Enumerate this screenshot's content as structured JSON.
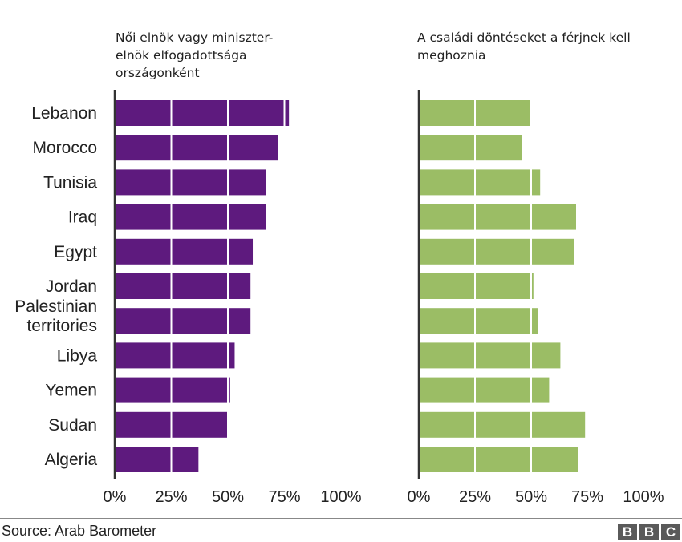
{
  "chart_data": [
    {
      "type": "bar",
      "orientation": "horizontal",
      "title": "Női elnök vagy miniszter-elnök elfogadottsága országonként",
      "title_lines": [
        "Női elnök vagy miniszter-",
        "elnök elfogadottsága",
        "országonként"
      ],
      "categories": [
        "Lebanon",
        "Morocco",
        "Tunisia",
        "Iraq",
        "Egypt",
        "Jordan",
        "Palestinian territories",
        "Libya",
        "Yemen",
        "Sudan",
        "Algeria"
      ],
      "category_lines": [
        [
          "Lebanon"
        ],
        [
          "Morocco"
        ],
        [
          "Tunisia"
        ],
        [
          "Iraq"
        ],
        [
          "Egypt"
        ],
        [
          "Jordan"
        ],
        [
          "Palestinian",
          "territories"
        ],
        [
          "Libya"
        ],
        [
          "Yemen"
        ],
        [
          "Sudan"
        ],
        [
          "Algeria"
        ]
      ],
      "values": [
        77,
        72,
        67,
        67,
        61,
        60,
        60,
        53,
        51,
        50,
        37
      ],
      "xlim": [
        0,
        100
      ],
      "ticks": [
        0,
        25,
        50,
        75,
        100
      ],
      "tick_labels": [
        "0%",
        "25%",
        "50%",
        "75%",
        "100%"
      ],
      "grid": true,
      "color": "#5e1a7e"
    },
    {
      "type": "bar",
      "orientation": "horizontal",
      "title": "A családi döntéseket a férjnek kell meghoznia",
      "title_lines": [
        "A családi döntéseket a férjnek kell",
        "meghoznia"
      ],
      "categories": [
        "Lebanon",
        "Morocco",
        "Tunisia",
        "Iraq",
        "Egypt",
        "Jordan",
        "Palestinian territories",
        "Libya",
        "Yemen",
        "Sudan",
        "Algeria"
      ],
      "values": [
        50,
        46,
        54,
        70,
        69,
        51,
        53,
        63,
        58,
        74,
        71
      ],
      "xlim": [
        0,
        100
      ],
      "ticks": [
        0,
        25,
        50,
        75,
        100
      ],
      "tick_labels": [
        "0%",
        "25%",
        "50%",
        "75%",
        "100%"
      ],
      "grid": true,
      "color": "#9bbd65"
    }
  ],
  "footer": {
    "source": "Source: Arab Barometer",
    "logo_letters": [
      "B",
      "B",
      "C"
    ]
  }
}
